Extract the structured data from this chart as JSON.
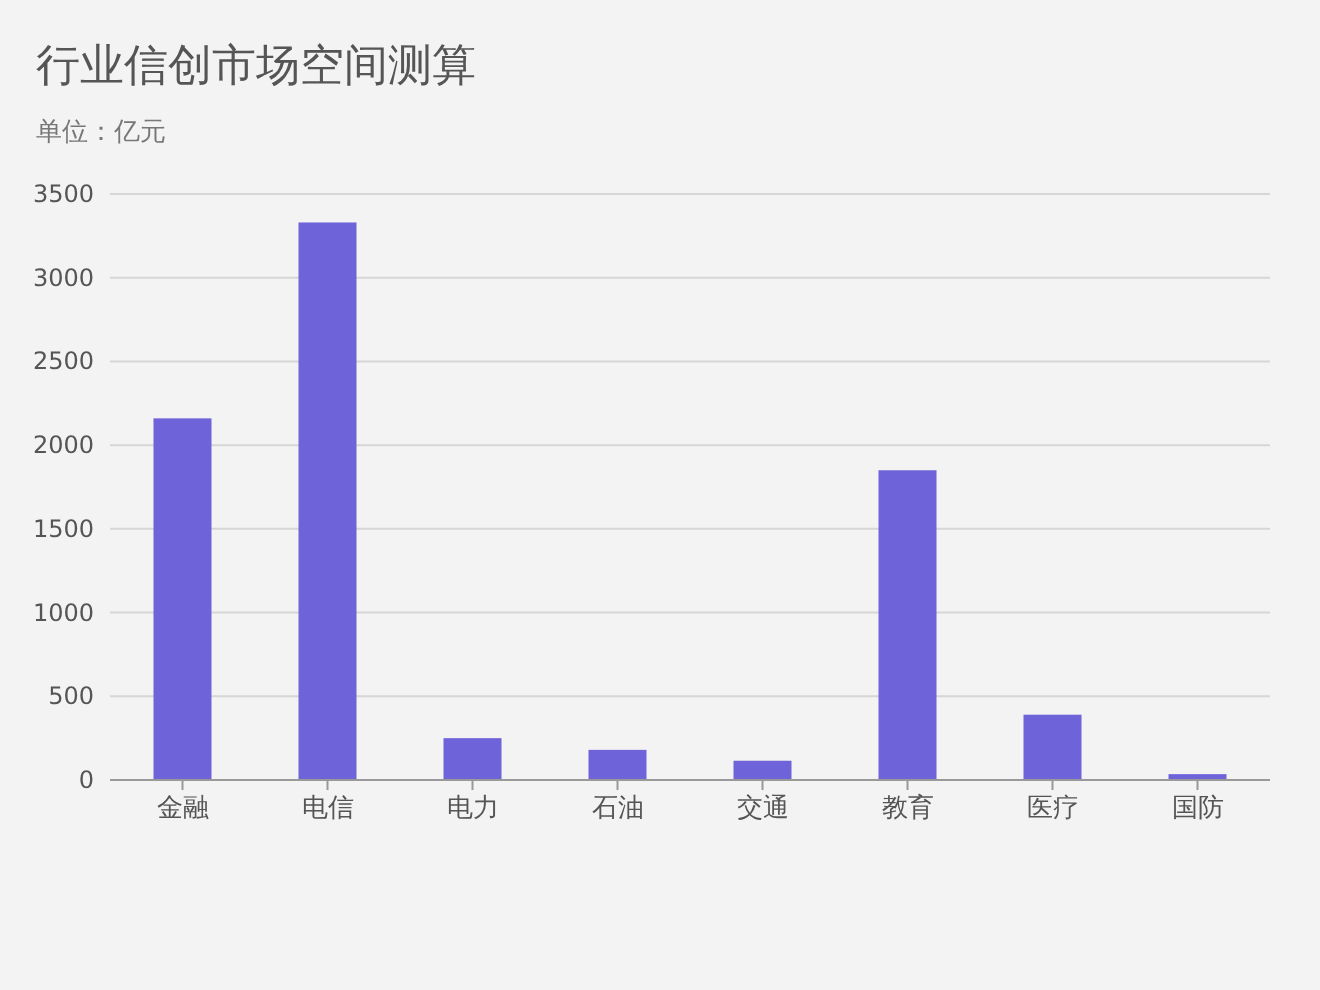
{
  "chart_data": {
    "type": "bar",
    "title": "行业信创市场空间测算",
    "subtitle": "单位：亿元",
    "categories": [
      "金融",
      "电信",
      "电力",
      "石油",
      "交通",
      "教育",
      "医疗",
      "国防"
    ],
    "values": [
      2160,
      3330,
      250,
      180,
      115,
      1850,
      390,
      35
    ],
    "color": "#6f63d9",
    "ylim": [
      0,
      3500
    ],
    "yticks": [
      0,
      500,
      1000,
      1500,
      2000,
      2500,
      3000,
      3500
    ],
    "grid": "y"
  }
}
